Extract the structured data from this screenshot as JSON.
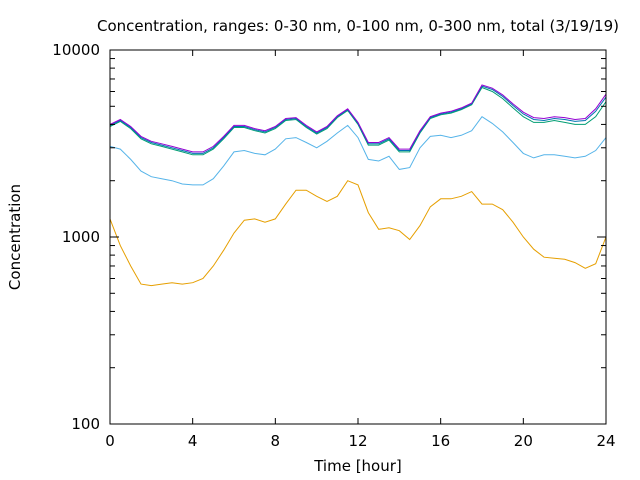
{
  "chart_data": {
    "type": "line",
    "title": "Concentration, ranges: 0-30 nm, 0-100 nm, 0-300 nm, total (3/19/19)",
    "xlabel": "Time [hour]",
    "ylabel": "Concentration",
    "xlim": [
      0,
      24
    ],
    "ylim": [
      100,
      10000
    ],
    "y_scale": "log",
    "x_ticks": [
      0,
      4,
      8,
      12,
      16,
      20,
      24
    ],
    "x_tick_labels": [
      "0",
      "4",
      "8",
      "12",
      "16",
      "20",
      "24"
    ],
    "y_ticks": [
      100,
      1000,
      10000
    ],
    "y_tick_labels": [
      "100",
      "1000",
      "10000"
    ],
    "grid": false,
    "legend": "none",
    "x": [
      0,
      0.5,
      1,
      1.5,
      2,
      2.5,
      3,
      3.5,
      4,
      4.5,
      5,
      5.5,
      6,
      6.5,
      7,
      7.5,
      8,
      8.5,
      9,
      9.5,
      10,
      10.5,
      11,
      11.5,
      12,
      12.5,
      13,
      13.5,
      14,
      14.5,
      15,
      15.5,
      16,
      16.5,
      17,
      17.5,
      18,
      18.5,
      19,
      19.5,
      20,
      20.5,
      21,
      21.5,
      22,
      22.5,
      23,
      23.5,
      24
    ],
    "series": [
      {
        "color": "#e69f00",
        "values": [
          1250,
          900,
          700,
          560,
          550,
          560,
          570,
          560,
          570,
          600,
          700,
          850,
          1050,
          1230,
          1250,
          1200,
          1250,
          1500,
          1780,
          1780,
          1650,
          1550,
          1650,
          2000,
          1900,
          1350,
          1100,
          1120,
          1080,
          970,
          1150,
          1450,
          1600,
          1600,
          1650,
          1750,
          1500,
          1500,
          1400,
          1200,
          1000,
          860,
          780,
          770,
          760,
          730,
          680,
          720,
          1000
        ]
      },
      {
        "color": "#56b4e9",
        "values": [
          3050,
          2950,
          2600,
          2250,
          2100,
          2050,
          2000,
          1920,
          1900,
          1900,
          2050,
          2400,
          2850,
          2900,
          2800,
          2750,
          2950,
          3350,
          3400,
          3200,
          3000,
          3250,
          3600,
          3950,
          3400,
          2600,
          2550,
          2700,
          2300,
          2350,
          3000,
          3450,
          3500,
          3400,
          3500,
          3700,
          4400,
          4050,
          3650,
          3200,
          2800,
          2650,
          2750,
          2750,
          2700,
          2650,
          2700,
          2900,
          3400
        ]
      },
      {
        "color": "#009e73",
        "values": [
          3900,
          4150,
          3800,
          3350,
          3150,
          3050,
          2950,
          2850,
          2750,
          2750,
          2950,
          3350,
          3850,
          3850,
          3700,
          3600,
          3800,
          4200,
          4250,
          3850,
          3550,
          3800,
          4350,
          4750,
          4000,
          3100,
          3100,
          3300,
          2850,
          2850,
          3600,
          4300,
          4500,
          4600,
          4800,
          5100,
          6300,
          6000,
          5500,
          4900,
          4400,
          4100,
          4100,
          4200,
          4100,
          4000,
          4000,
          4400,
          5300
        ]
      },
      {
        "color": "#0072b2",
        "values": [
          3950,
          4200,
          3850,
          3400,
          3200,
          3100,
          3000,
          2900,
          2800,
          2800,
          3000,
          3400,
          3900,
          3900,
          3750,
          3650,
          3850,
          4250,
          4300,
          3900,
          3600,
          3850,
          4400,
          4800,
          4050,
          3150,
          3150,
          3350,
          2900,
          2900,
          3650,
          4350,
          4550,
          4650,
          4850,
          5150,
          6400,
          6150,
          5650,
          5050,
          4550,
          4250,
          4200,
          4300,
          4250,
          4150,
          4200,
          4700,
          5600
        ]
      },
      {
        "color": "#9400d3",
        "values": [
          4000,
          4250,
          3900,
          3450,
          3250,
          3150,
          3050,
          2950,
          2850,
          2850,
          3050,
          3450,
          3950,
          3950,
          3800,
          3700,
          3900,
          4300,
          4350,
          3950,
          3650,
          3900,
          4450,
          4850,
          4100,
          3200,
          3200,
          3400,
          2950,
          2950,
          3700,
          4400,
          4600,
          4700,
          4900,
          5200,
          6500,
          6250,
          5750,
          5150,
          4650,
          4350,
          4300,
          4400,
          4350,
          4250,
          4300,
          4850,
          5800
        ]
      }
    ]
  }
}
